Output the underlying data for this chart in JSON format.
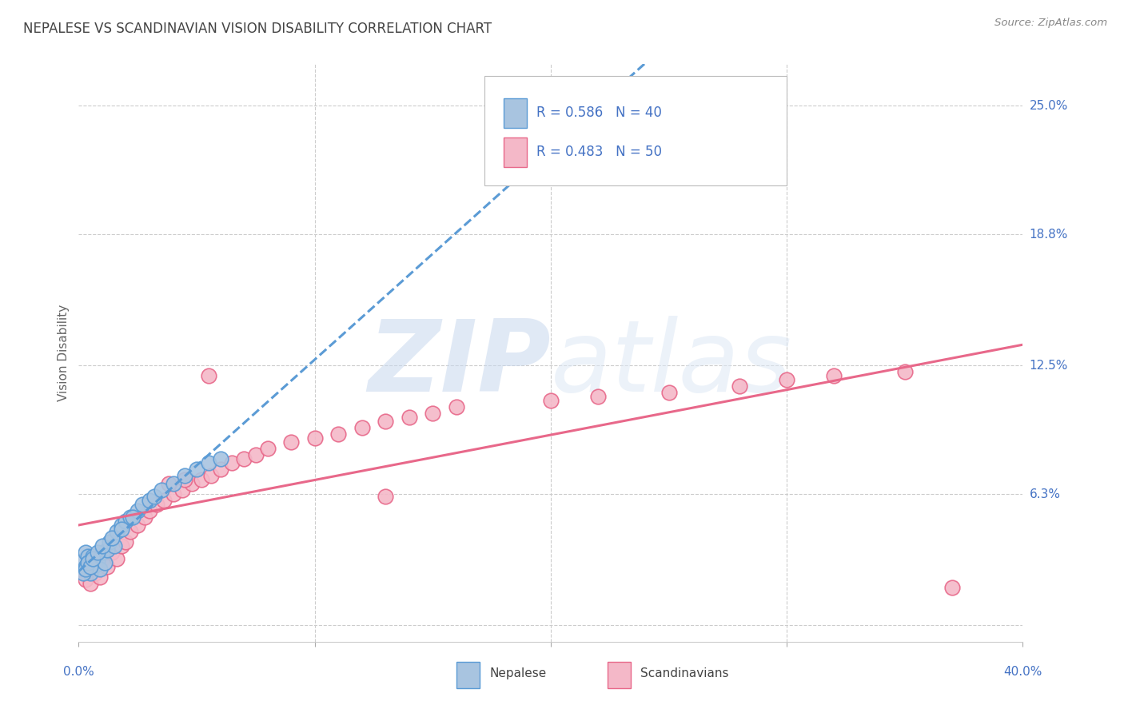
{
  "title": "NEPALESE VS SCANDINAVIAN VISION DISABILITY CORRELATION CHART",
  "source": "Source: ZipAtlas.com",
  "ylabel": "Vision Disability",
  "ytick_labels": [
    "25.0%",
    "18.8%",
    "12.5%",
    "6.3%"
  ],
  "ytick_values": [
    0.25,
    0.188,
    0.125,
    0.063
  ],
  "xlim": [
    0.0,
    0.4
  ],
  "ylim": [
    -0.008,
    0.27
  ],
  "nepalese_color": "#a8c4e0",
  "nepalese_edge": "#5b9bd5",
  "scandinavian_color": "#f4b8c8",
  "scandinavian_edge": "#e8688a",
  "trend_nepalese_color": "#5b9bd5",
  "trend_scandinavian_color": "#e8688a",
  "label_color": "#4472c4",
  "background_color": "#ffffff",
  "grid_color": "#cccccc",
  "watermark_color": "#dde8f5",
  "nepalese_x": [
    0.002,
    0.003,
    0.003,
    0.004,
    0.004,
    0.005,
    0.005,
    0.006,
    0.007,
    0.008,
    0.009,
    0.01,
    0.011,
    0.012,
    0.013,
    0.015,
    0.016,
    0.018,
    0.02,
    0.022,
    0.025,
    0.027,
    0.03,
    0.032,
    0.035,
    0.04,
    0.045,
    0.05,
    0.055,
    0.06,
    0.002,
    0.003,
    0.004,
    0.005,
    0.006,
    0.008,
    0.01,
    0.014,
    0.018,
    0.023
  ],
  "nepalese_y": [
    0.031,
    0.028,
    0.035,
    0.033,
    0.03,
    0.025,
    0.03,
    0.033,
    0.029,
    0.031,
    0.027,
    0.035,
    0.03,
    0.036,
    0.04,
    0.038,
    0.045,
    0.048,
    0.05,
    0.052,
    0.055,
    0.058,
    0.06,
    0.062,
    0.065,
    0.068,
    0.072,
    0.075,
    0.078,
    0.08,
    0.025,
    0.027,
    0.03,
    0.028,
    0.032,
    0.035,
    0.038,
    0.042,
    0.046,
    0.052
  ],
  "scandinavian_x": [
    0.002,
    0.003,
    0.004,
    0.005,
    0.006,
    0.007,
    0.008,
    0.009,
    0.01,
    0.012,
    0.014,
    0.016,
    0.018,
    0.02,
    0.022,
    0.025,
    0.028,
    0.03,
    0.033,
    0.036,
    0.04,
    0.044,
    0.048,
    0.052,
    0.056,
    0.06,
    0.065,
    0.07,
    0.075,
    0.08,
    0.09,
    0.1,
    0.11,
    0.12,
    0.13,
    0.14,
    0.15,
    0.16,
    0.2,
    0.22,
    0.25,
    0.28,
    0.3,
    0.32,
    0.35,
    0.038,
    0.045,
    0.055,
    0.13,
    0.37
  ],
  "scandinavian_y": [
    0.025,
    0.022,
    0.028,
    0.02,
    0.03,
    0.025,
    0.027,
    0.023,
    0.032,
    0.028,
    0.035,
    0.032,
    0.038,
    0.04,
    0.045,
    0.048,
    0.052,
    0.055,
    0.058,
    0.06,
    0.063,
    0.065,
    0.068,
    0.07,
    0.072,
    0.075,
    0.078,
    0.08,
    0.082,
    0.085,
    0.088,
    0.09,
    0.092,
    0.095,
    0.098,
    0.1,
    0.102,
    0.105,
    0.108,
    0.11,
    0.112,
    0.115,
    0.118,
    0.12,
    0.122,
    0.068,
    0.07,
    0.12,
    0.062,
    0.018
  ]
}
